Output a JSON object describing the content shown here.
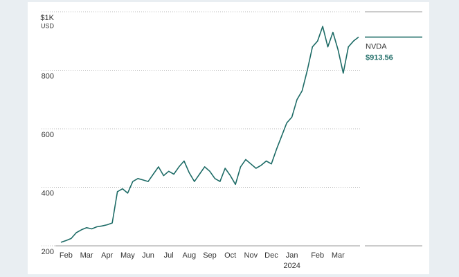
{
  "chart_data": {
    "type": "line",
    "categories": [
      null,
      "Feb",
      null,
      null,
      null,
      "Mar",
      null,
      null,
      null,
      "Apr",
      null,
      null,
      null,
      "May",
      null,
      null,
      null,
      "Jun",
      null,
      null,
      null,
      "Jul",
      null,
      null,
      null,
      "Aug",
      null,
      null,
      null,
      "Sep",
      null,
      null,
      null,
      "Oct",
      null,
      null,
      null,
      "Nov",
      null,
      null,
      null,
      "Dec",
      null,
      null,
      null,
      "Jan",
      null,
      null,
      null,
      null,
      "Feb",
      null,
      null,
      null,
      "Mar",
      null,
      null,
      null,
      null
    ],
    "year_label": "2024",
    "series": [
      {
        "name": "NVDA",
        "color": "#1d6b66",
        "last_value_label": "$913.56",
        "values": [
          212,
          218,
          225,
          245,
          255,
          262,
          258,
          265,
          268,
          272,
          278,
          385,
          395,
          380,
          420,
          430,
          425,
          420,
          445,
          470,
          440,
          455,
          445,
          470,
          490,
          450,
          420,
          445,
          470,
          455,
          430,
          420,
          465,
          440,
          410,
          470,
          495,
          480,
          465,
          475,
          490,
          480,
          530,
          575,
          620,
          640,
          700,
          730,
          800,
          880,
          900,
          950,
          880,
          930,
          870,
          790,
          880,
          900,
          913.56
        ]
      }
    ],
    "ylim": [
      200,
      1000
    ],
    "yticks": [
      {
        "value": 1000,
        "label": "$1K"
      },
      800,
      600,
      400,
      200
    ],
    "y_unit": "USD",
    "grid": true
  }
}
